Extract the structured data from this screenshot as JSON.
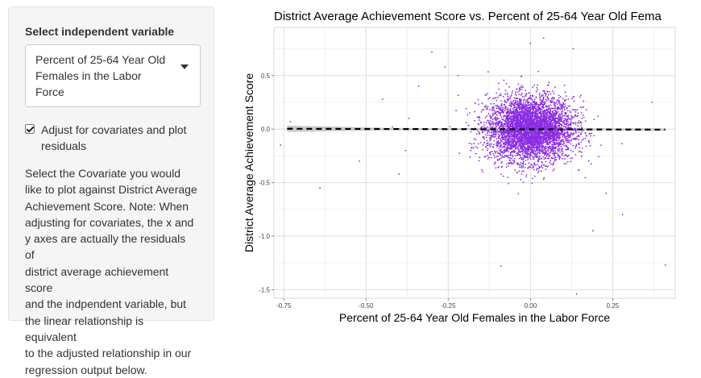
{
  "sidebar": {
    "select_label": "Select independent variable",
    "select_value_line1": "Percent of 25-64 Year Old",
    "select_value_line2": "Females in the Labor Force",
    "checkbox_checked": true,
    "checkbox_label_line1": "Adjust for covariates and plot",
    "checkbox_label_line2": "residuals",
    "help_lines": [
      "Select the Covariate you would",
      "like to plot against District Average",
      "Achievement Score. Note: When",
      "adjusting for covariates, the x and",
      "y axes are actually the residuals of",
      "district average achievement score",
      "and the indpendent variable, but",
      "the linear relationship is equivalent",
      "to the adjusted relationship in our",
      "regression output below."
    ]
  },
  "chart_data": {
    "type": "scatter",
    "title": "District Average Achievement Score vs. Percent of 25-64 Year Old Fema",
    "xlabel": "Percent of 25-64 Year Old Females in the Labor Force",
    "ylabel": "District Average Achievement Score",
    "xlim": [
      -0.78,
      0.44
    ],
    "ylim": [
      -1.58,
      0.95
    ],
    "x_ticks": [
      -0.75,
      -0.5,
      -0.25,
      0.0,
      0.25
    ],
    "x_tick_labels": [
      "-0.75",
      "-0.50",
      "-0.25",
      "0.00",
      "0.25"
    ],
    "y_ticks": [
      -1.5,
      -1.0,
      -0.5,
      0.0,
      0.5
    ],
    "y_tick_labels": [
      "-1.5",
      "-1.0",
      "-0.5",
      "0.0",
      "0.5"
    ],
    "grid": true,
    "point_color": "#8a2be2",
    "fit_line": {
      "x": [
        -0.74,
        0.41
      ],
      "y": [
        0.003,
        -0.005
      ],
      "style": "dashed",
      "color": "#000000"
    },
    "confidence_band_color": "#bdbdbd",
    "cloud": {
      "center_x": 0.0,
      "center_y": 0.0,
      "sd_x": 0.065,
      "sd_y": 0.15,
      "n": 4500
    },
    "outliers": [
      [
        -0.76,
        -0.15
      ],
      [
        -0.73,
        0.07
      ],
      [
        -0.64,
        -0.55
      ],
      [
        -0.52,
        -0.3
      ],
      [
        -0.45,
        0.28
      ],
      [
        -0.42,
        0.02
      ],
      [
        -0.4,
        -0.42
      ],
      [
        -0.38,
        -0.2
      ],
      [
        -0.37,
        0.1
      ],
      [
        -0.34,
        0.4
      ],
      [
        -0.3,
        0.72
      ],
      [
        -0.26,
        0.58
      ],
      [
        -0.22,
        0.5
      ],
      [
        0.0,
        0.8
      ],
      [
        0.04,
        0.85
      ],
      [
        0.13,
        0.75
      ],
      [
        0.15,
        0.3
      ],
      [
        0.23,
        -0.6
      ],
      [
        0.28,
        -0.8
      ],
      [
        0.37,
        0.25
      ],
      [
        0.41,
        -1.27
      ],
      [
        -0.09,
        -1.28
      ],
      [
        0.14,
        -1.54
      ],
      [
        0.19,
        -0.95
      ]
    ]
  }
}
